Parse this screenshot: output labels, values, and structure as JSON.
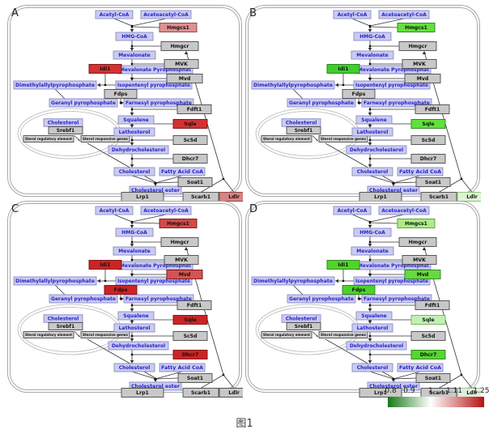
{
  "figure": {
    "caption": "图1"
  },
  "colors": {
    "metabolite_fill": "#CBCBEE",
    "metabolite_stroke": "#8A8ACA",
    "metabolite_text": "#2424CC",
    "gene_default_fill": "#C8C8C8",
    "gene_stroke": "#4A4A4A",
    "gene_text": "#111111",
    "line": "#333333",
    "panel_border": "#A8A8A8"
  },
  "pathway": {
    "metabolites": {
      "acetylcoa": "Acetyl-CoA",
      "acetoacetylcoa": "Acetoacetyl-CoA",
      "hmgcoa": "HMG-CoA",
      "mevalonate": "Mevalonate",
      "mevpp": "Mevalonate Pyrophosphat",
      "dmapp": "Dimethylallylpyrophosphate",
      "ipp": "Isopentenyl pyrophosphate",
      "gpp": "Geranyl pyrophosphate",
      "fpp": "Farnesyl pyrophosphate",
      "squalene": "Squalene",
      "lathosterol": "Lathosterol",
      "dehydrocholesterol": "Dehydrocholesterol",
      "cholesterol": "Cholesterol",
      "fattyacidcoa": "Fatty Acid CoA",
      "cholesterolester": "Cholesterol ester"
    },
    "genes": {
      "Hmgcs1": "Hmgcs1",
      "Hmgcr": "Hmgcr",
      "MVK": "MVK",
      "Mvd": "Mvd",
      "Idi1": "Idi1",
      "Fdps": "Fdps",
      "Fdft1": "Fdft1",
      "Sqle": "Sqle",
      "Sc5d": "Sc5d",
      "Dhcr7": "Dhcr7",
      "Soat1": "Soat1",
      "Lrp1": "Lrp1",
      "Scarb1": "Scarb1",
      "Ldlr": "Ldlr"
    },
    "regulation": {
      "cholesterol": "Cholesterol",
      "srebf1": "Srebf1",
      "sterol_regulatory_element": "Sterol regulatory element",
      "sterol_responsive_genes": "Sterol responsive genes"
    }
  },
  "panels": [
    {
      "letter": "A",
      "gene_colors": {
        "Hmgcs1": {
          "f": "#DE9090",
          "s": "#8B3A3A"
        },
        "Idi1": {
          "f": "#D23232",
          "s": "#7A1010"
        },
        "Sqle": {
          "f": "#D23232",
          "s": "#7A1010"
        },
        "Ldlr": {
          "f": "#D88383",
          "s": "#8B3A3A"
        }
      }
    },
    {
      "letter": "B",
      "gene_colors": {
        "Hmgcs1": {
          "f": "#5FE23A",
          "s": "#2E7D1E"
        },
        "Idi1": {
          "f": "#3FCE2E",
          "s": "#237A18"
        },
        "Sqle": {
          "f": "#5FE23A",
          "s": "#2E7D1E"
        },
        "Ldlr": {
          "f": "#DDF3D3",
          "s": "#7FBF6F"
        }
      }
    },
    {
      "letter": "C",
      "gene_colors": {
        "Hmgcs1": {
          "f": "#D24A4A",
          "s": "#7A1010"
        },
        "Idi1": {
          "f": "#CC2424",
          "s": "#7A1010"
        },
        "Mvd": {
          "f": "#D25454",
          "s": "#7A1010"
        },
        "Fdps": {
          "f": "#CC2424",
          "s": "#7A1010"
        },
        "Sqle": {
          "f": "#CC2424",
          "s": "#7A1010"
        },
        "Dhcr7": {
          "f": "#CC2424",
          "s": "#7A1010"
        }
      }
    },
    {
      "letter": "D",
      "gene_colors": {
        "Hmgcs1": {
          "f": "#ACEC84",
          "s": "#4F9E34"
        },
        "Idi1": {
          "f": "#4FD42C",
          "s": "#2E7D1E"
        },
        "Mvd": {
          "f": "#66DA40",
          "s": "#2E7D1E"
        },
        "Fdps": {
          "f": "#4AD228",
          "s": "#2E7D1E"
        },
        "Sqle": {
          "f": "#C2EFB4",
          "s": "#6FAF5C"
        },
        "Dhcr7": {
          "f": "#55D630",
          "s": "#2E7D1E"
        },
        "Ldlr": {
          "f": "#DFEEDC",
          "s": "#9ABC92"
        }
      }
    }
  ],
  "colorbar": {
    "ticks": [
      "0.8",
      "0.9",
      "1",
      "1.11",
      "1.25"
    ],
    "tick_values": [
      0.8,
      0.9,
      1.0,
      1.11,
      1.25
    ],
    "min": 0.8,
    "mid": 1.0,
    "max": 1.25,
    "low_color": "#157A15",
    "mid_color": "#FFFFFF",
    "high_color": "#B51414"
  }
}
